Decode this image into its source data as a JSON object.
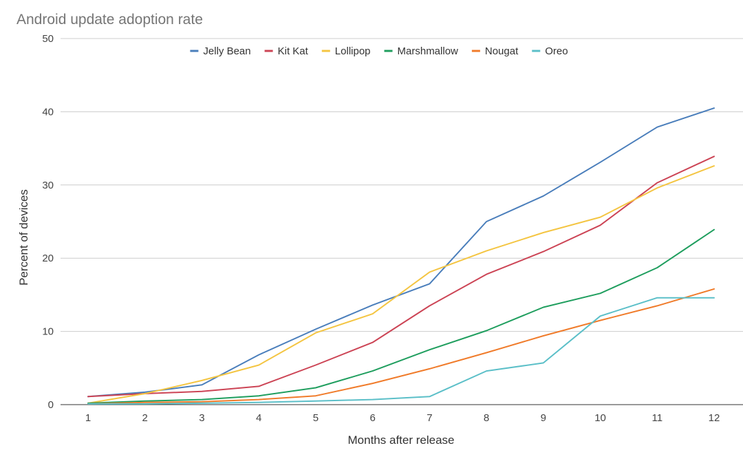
{
  "chart_data": {
    "type": "line",
    "title": "Android update adoption rate",
    "xlabel": "Months after release",
    "ylabel": "Percent of devices",
    "x": [
      1,
      2,
      3,
      4,
      5,
      6,
      7,
      8,
      9,
      10,
      11,
      12
    ],
    "x_tick_labels": [
      "1",
      "2",
      "3",
      "4",
      "5",
      "6",
      "7",
      "8",
      "9",
      "10",
      "11",
      "12"
    ],
    "ylim": [
      0,
      50
    ],
    "y_ticks": [
      0,
      10,
      20,
      30,
      40,
      50
    ],
    "grid": true,
    "legend_position": "top",
    "series": [
      {
        "name": "Jelly Bean",
        "color": "#4a7ebb",
        "values": [
          1.1,
          1.7,
          2.7,
          6.8,
          10.3,
          13.6,
          16.5,
          25.0,
          28.5,
          33.1,
          37.9,
          40.5
        ]
      },
      {
        "name": "Kit Kat",
        "color": "#cc4455",
        "values": [
          1.1,
          1.5,
          1.8,
          2.5,
          5.4,
          8.5,
          13.5,
          17.8,
          20.9,
          24.5,
          30.3,
          33.9
        ]
      },
      {
        "name": "Lollipop",
        "color": "#f4c542",
        "values": [
          0.2,
          1.5,
          3.3,
          5.4,
          9.8,
          12.4,
          18.1,
          21.0,
          23.5,
          25.6,
          29.6,
          32.6
        ]
      },
      {
        "name": "Marshmallow",
        "color": "#1f9e5e",
        "values": [
          0.2,
          0.5,
          0.7,
          1.2,
          2.3,
          4.6,
          7.5,
          10.1,
          13.3,
          15.2,
          18.7,
          23.9
        ]
      },
      {
        "name": "Nougat",
        "color": "#f07b2a",
        "values": [
          0.1,
          0.3,
          0.4,
          0.7,
          1.2,
          2.9,
          4.9,
          7.1,
          9.4,
          11.5,
          13.5,
          15.8
        ]
      },
      {
        "name": "Oreo",
        "color": "#5bbfc8",
        "values": [
          0.1,
          0.1,
          0.2,
          0.3,
          0.5,
          0.7,
          1.1,
          4.6,
          5.7,
          12.1,
          14.6,
          14.6
        ]
      }
    ]
  }
}
